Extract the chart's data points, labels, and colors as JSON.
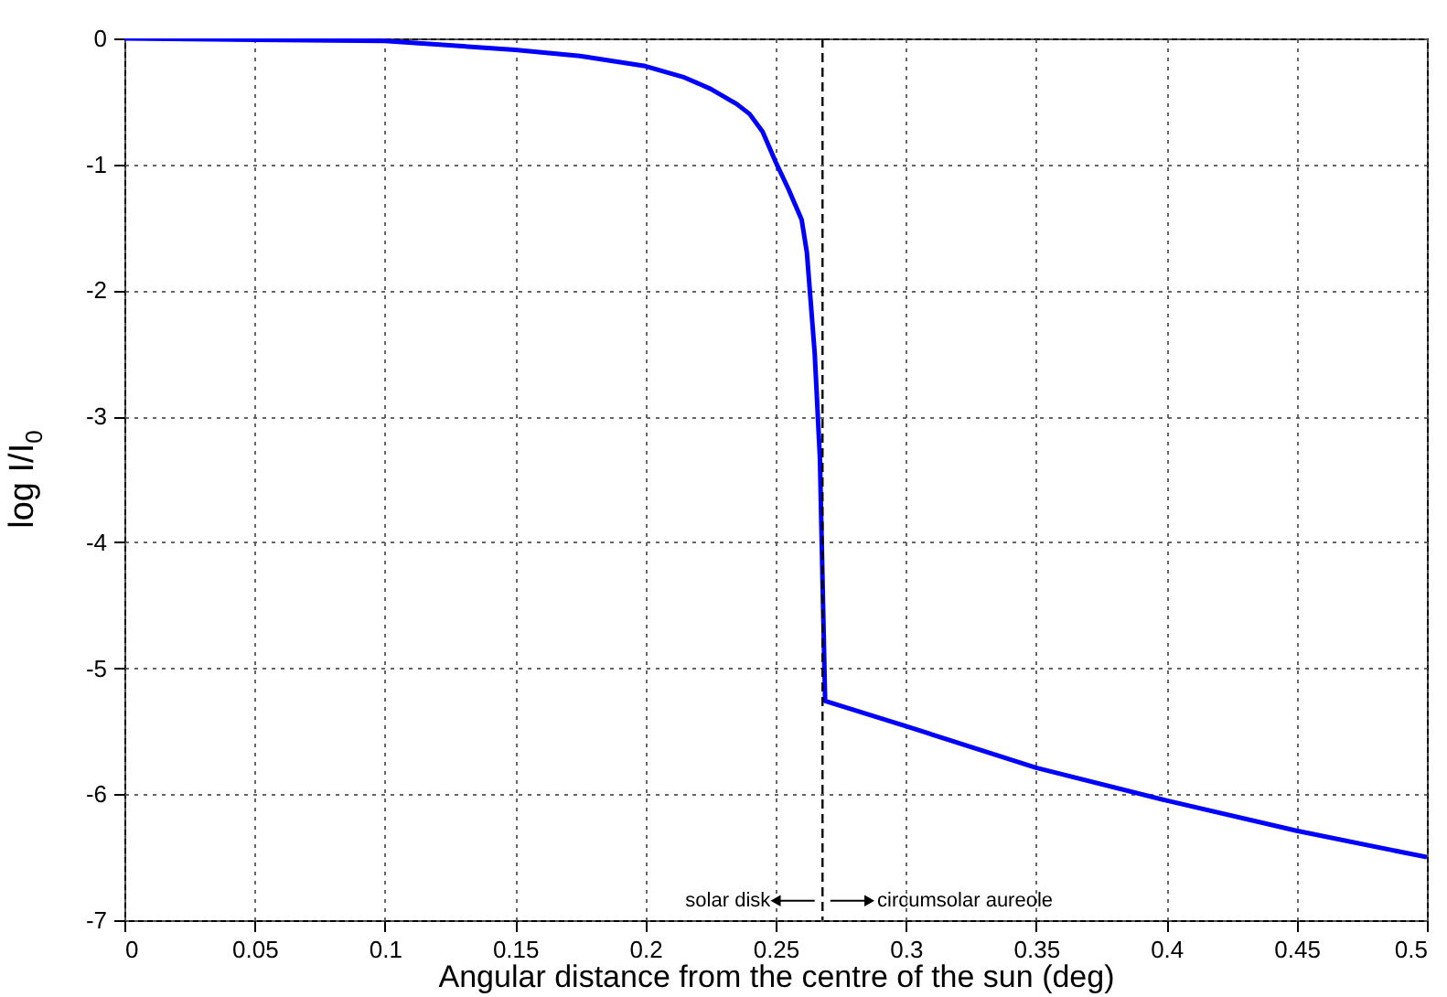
{
  "chart_data": {
    "type": "line",
    "xlabel": "Angular distance from the centre of the sun (deg)",
    "ylabel": "log I/I$_{0}$",
    "x": [
      0,
      0.05,
      0.1,
      0.15,
      0.175,
      0.2,
      0.215,
      0.225,
      0.235,
      0.24,
      0.245,
      0.25,
      0.255,
      0.26,
      0.262,
      0.265,
      0.267,
      0.268,
      0.269,
      0.3,
      0.35,
      0.4,
      0.45,
      0.5
    ],
    "series": [
      {
        "color": "#0000ff",
        "values": [
          0,
          -0.01,
          -0.02,
          -0.09,
          -0.14,
          -0.22,
          -0.31,
          -0.4,
          -0.52,
          -0.6,
          -0.74,
          -0.98,
          -1.2,
          -1.44,
          -1.7,
          -2.5,
          -3.33,
          -4.3,
          -5.26,
          -5.46,
          -5.79,
          -6.05,
          -6.29,
          -6.5
        ]
      }
    ],
    "xlim": [
      0,
      0.5
    ],
    "xticks": [
      0,
      0.05,
      0.1,
      0.15,
      0.2,
      0.25,
      0.3,
      0.35,
      0.4,
      0.45,
      0.5
    ],
    "ylim": [
      -7,
      0
    ],
    "yticks": [
      -7,
      -6,
      -5,
      -4,
      -3,
      -2,
      -1,
      0
    ],
    "grid": true,
    "line_style": "solid",
    "ref_lines": [
      {
        "axis": "x",
        "value": 0.268,
        "color": "#000000",
        "line_style": "dashed"
      }
    ],
    "annotations": [
      "solar disk",
      "circumsolar aureole"
    ]
  }
}
